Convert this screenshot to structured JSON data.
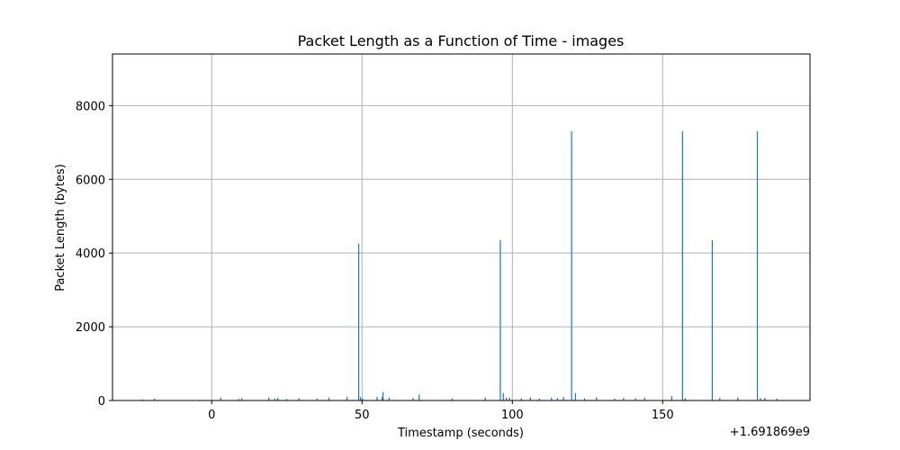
{
  "chart_data": {
    "type": "bar",
    "title": "Packet Length as a Function of Time - images",
    "xlabel": "Timestamp (seconds)",
    "ylabel": "Packet Length (bytes)",
    "x_offset_label": "+1.691869e9",
    "xlim": [
      -33,
      199
    ],
    "ylim": [
      0,
      9400
    ],
    "x_ticks": [
      0,
      50,
      100,
      150
    ],
    "y_ticks": [
      0,
      2000,
      4000,
      6000,
      8000
    ],
    "grid": true,
    "bar_color": "#1f77b4",
    "x": [
      -23,
      -19,
      -4,
      3,
      9,
      10,
      19,
      21,
      22,
      25,
      29,
      35,
      39,
      45,
      48.9,
      49.5,
      50.2,
      55,
      56.7,
      57,
      59,
      67,
      69,
      80,
      91,
      96,
      97,
      98,
      99,
      103,
      106,
      109,
      113,
      115,
      117,
      119.7,
      121,
      124,
      128,
      134,
      137,
      141,
      144,
      153,
      156.6,
      157.5,
      166.5,
      169,
      175,
      181.5,
      182.5,
      184,
      188
    ],
    "values": [
      30,
      50,
      20,
      80,
      40,
      60,
      90,
      50,
      70,
      40,
      60,
      50,
      80,
      100,
      4250,
      90,
      60,
      100,
      100,
      230,
      80,
      70,
      160,
      60,
      90,
      4350,
      200,
      70,
      80,
      60,
      90,
      50,
      80,
      70,
      100,
      7300,
      200,
      60,
      90,
      50,
      70,
      60,
      80,
      120,
      7300,
      60,
      4350,
      70,
      90,
      7300,
      60,
      70,
      50
    ]
  }
}
